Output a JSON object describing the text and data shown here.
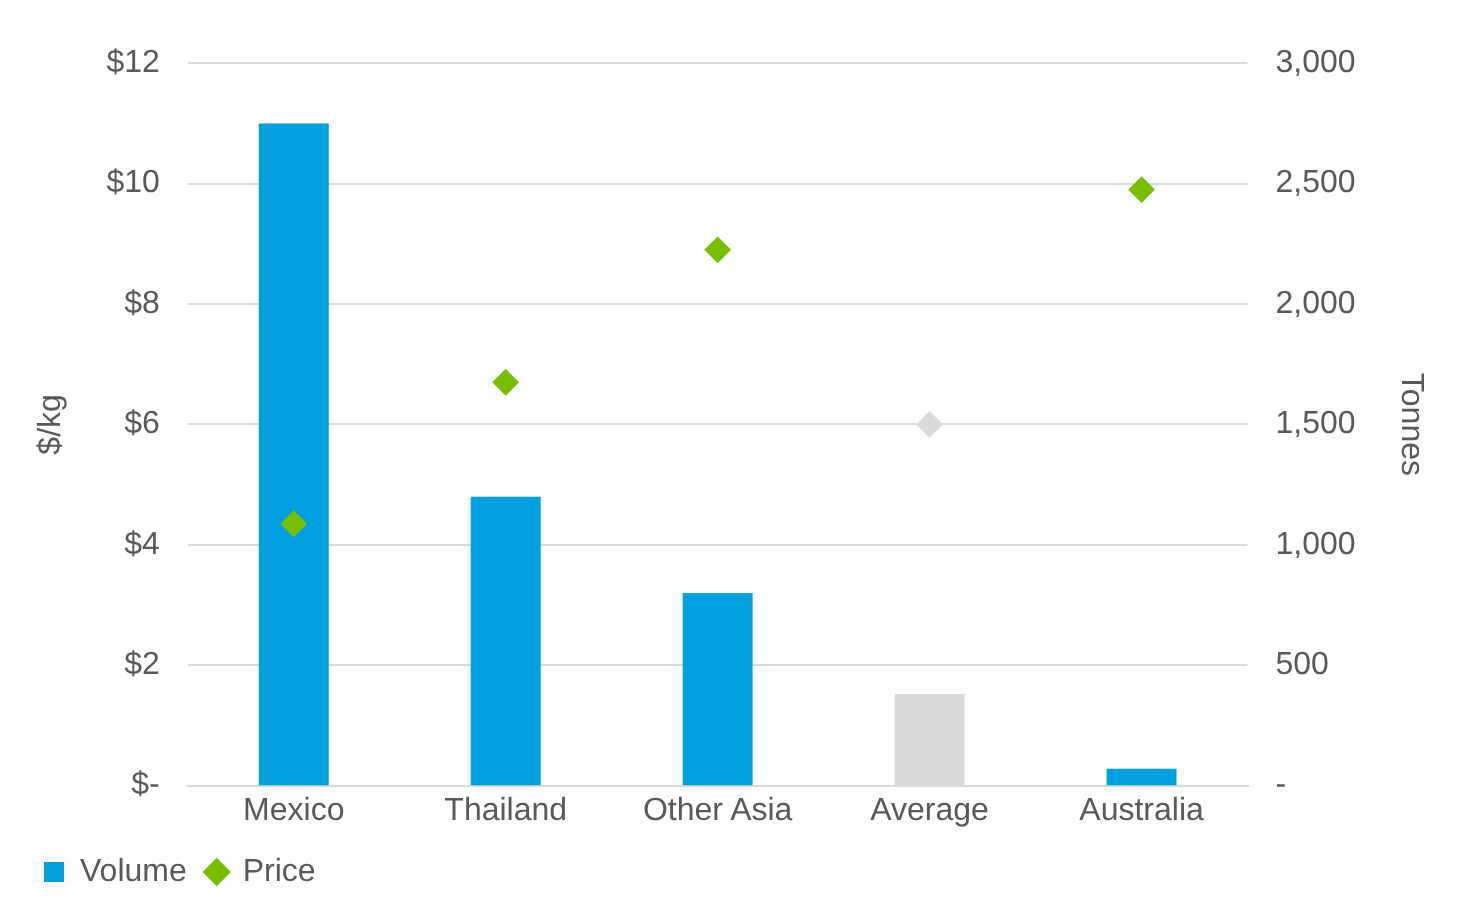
{
  "chart_data": {
    "type": "bar",
    "ylabel": "$/kg",
    "y2label": "Tonnes",
    "categories": [
      "Mexico",
      "Thailand",
      "Other Asia",
      "Average",
      "Australia"
    ],
    "series": [
      {
        "name": "Volume",
        "axis": "y2",
        "color": "#009fde",
        "colors": [
          "#009fde",
          "#009fde",
          "#009fde",
          "#d9d9d9",
          "#009fde"
        ],
        "values": [
          2750,
          1200,
          800,
          380,
          70
        ]
      },
      {
        "name": "Price",
        "type": "scatter",
        "axis": "y",
        "marker": "diamond",
        "color": "#78be00",
        "colors": [
          "#78be00",
          "#78be00",
          "#78be00",
          "#d9d9d9",
          "#78be00"
        ],
        "x": [
          "Mexico",
          "Thailand",
          "Other Asia",
          "Average",
          "Australia"
        ],
        "values": [
          4.35,
          6.7,
          8.9,
          6.0,
          9.9
        ]
      }
    ],
    "ylim": [
      0,
      12
    ],
    "yticks": [
      {
        "value": 0,
        "label": "$-"
      },
      {
        "value": 2,
        "label": "$2"
      },
      {
        "value": 4,
        "label": "$4"
      },
      {
        "value": 6,
        "label": "$6"
      },
      {
        "value": 8,
        "label": "$8"
      },
      {
        "value": 10,
        "label": "$10"
      },
      {
        "value": 12,
        "label": "$12"
      }
    ],
    "y2lim": [
      0,
      3000
    ],
    "y2ticks": [
      {
        "value": 0,
        "label": "-"
      },
      500,
      {
        "value": 1000,
        "label": "1,000"
      },
      {
        "value": 1500,
        "label": "1,500"
      },
      {
        "value": 2000,
        "label": "2,000"
      },
      {
        "value": 2500,
        "label": "2,500"
      },
      {
        "value": 3000,
        "label": "3,000"
      }
    ],
    "grid": "y",
    "legend": "bottom left"
  }
}
